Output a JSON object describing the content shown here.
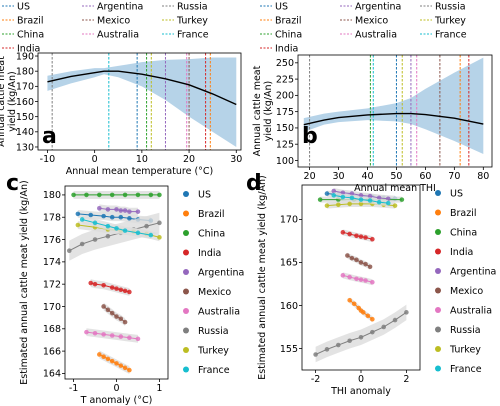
{
  "countries": [
    {
      "name": "US",
      "color": "#1f77b4"
    },
    {
      "name": "Brazil",
      "color": "#ff7f0e"
    },
    {
      "name": "China",
      "color": "#2ca02c"
    },
    {
      "name": "India",
      "color": "#d62728"
    },
    {
      "name": "Argentina",
      "color": "#9467bd"
    },
    {
      "name": "Mexico",
      "color": "#8c564b"
    },
    {
      "name": "Australia",
      "color": "#e377c2"
    },
    {
      "name": "Russia",
      "color": "#7f7f7f"
    },
    {
      "name": "Turkey",
      "color": "#bcbd22"
    },
    {
      "name": "France",
      "color": "#17becf"
    }
  ],
  "legend_top_order": [
    "US",
    "Argentina",
    "Russia",
    "Brazil",
    "Mexico",
    "Turkey",
    "China",
    "Australia",
    "France",
    "India"
  ],
  "colors": {
    "fit_line": "#000000",
    "band": "#a9cbe4",
    "band_gray": "#dcdcdc"
  },
  "chart_data": [
    {
      "panel": "a",
      "type": "line",
      "xlabel": "Annual mean temperature (°C)",
      "ylabel": "Annual cattle meat yield (kg/An)",
      "xlim": [
        -12,
        31
      ],
      "ylim": [
        128,
        192
      ],
      "xticks": [
        -10,
        0,
        10,
        20,
        30
      ],
      "yticks": [
        130,
        140,
        150,
        160,
        170,
        180,
        190
      ],
      "fit": [
        [
          -10,
          173
        ],
        [
          -5,
          176.5
        ],
        [
          0,
          179
        ],
        [
          2,
          180
        ],
        [
          5,
          180
        ],
        [
          10,
          178
        ],
        [
          15,
          175
        ],
        [
          20,
          171
        ],
        [
          25,
          165
        ],
        [
          30,
          158
        ]
      ],
      "band": [
        [
          -10,
          167,
          177
        ],
        [
          -5,
          172,
          180
        ],
        [
          0,
          176,
          182
        ],
        [
          2,
          178,
          182
        ],
        [
          5,
          176,
          183.5
        ],
        [
          10,
          170,
          186
        ],
        [
          15,
          161,
          187.5
        ],
        [
          20,
          150,
          188
        ],
        [
          25,
          140,
          189
        ],
        [
          30,
          130,
          189
        ]
      ],
      "country_x": {
        "US": 9,
        "Brazil": 24.5,
        "China": 11,
        "India": 23.5,
        "Argentina": 15,
        "Mexico": 20,
        "Australia": 19.5,
        "Russia": -9,
        "Turkey": 12,
        "France": 3
      }
    },
    {
      "panel": "b",
      "type": "line",
      "xlabel": "Annual mean THI",
      "ylabel": "Annual cattle meat yield (kg/An)",
      "xlim": [
        16,
        83
      ],
      "ylim": [
        90,
        262
      ],
      "xticks": [
        20,
        30,
        40,
        50,
        60,
        70,
        80
      ],
      "yticks": [
        100,
        125,
        150,
        175,
        200,
        225,
        250
      ],
      "fit": [
        [
          18,
          155
        ],
        [
          25,
          162
        ],
        [
          30,
          166
        ],
        [
          40,
          170
        ],
        [
          50,
          172
        ],
        [
          55,
          172
        ],
        [
          60,
          170.5
        ],
        [
          70,
          165
        ],
        [
          80,
          156
        ]
      ],
      "band": [
        [
          18,
          144,
          165
        ],
        [
          25,
          155,
          172
        ],
        [
          30,
          159,
          175
        ],
        [
          40,
          162,
          180
        ],
        [
          50,
          160,
          188
        ],
        [
          55,
          156,
          196
        ],
        [
          60,
          148,
          210
        ],
        [
          70,
          130,
          235
        ],
        [
          80,
          110,
          258
        ]
      ],
      "country_x": {
        "US": 50,
        "Brazil": 72,
        "China": 41,
        "India": 75,
        "Argentina": 55,
        "Mexico": 65,
        "Australia": 57,
        "Russia": 20,
        "Turkey": 52,
        "France": 42
      }
    },
    {
      "panel": "c",
      "type": "scatter",
      "xlabel": "T anomaly (°C)",
      "ylabel": "Estimated annual cattle meat yield (kg/An)",
      "xlim": [
        -1.2,
        1.2
      ],
      "ylim": [
        163.5,
        180.8
      ],
      "xticks": [
        -1,
        0,
        1
      ],
      "yticks": [
        164,
        166,
        168,
        170,
        172,
        174,
        176,
        178,
        180
      ],
      "series": [
        {
          "name": "US",
          "x": [
            -0.9,
            -0.6,
            -0.3,
            -0.1,
            0.1,
            0.3,
            0.5,
            0.8
          ],
          "y": [
            178.3,
            178.2,
            178.1,
            178.0,
            178.0,
            177.9,
            177.8,
            177.7
          ]
        },
        {
          "name": "Brazil",
          "x": [
            -0.4,
            -0.3,
            -0.2,
            -0.1,
            0.0,
            0.1,
            0.2,
            0.3
          ],
          "y": [
            165.7,
            165.5,
            165.3,
            165.1,
            164.9,
            164.7,
            164.5,
            164.3
          ]
        },
        {
          "name": "China",
          "x": [
            -1.0,
            -0.7,
            -0.4,
            -0.1,
            0.2,
            0.5,
            0.8,
            1.0
          ],
          "y": [
            180.0,
            180.0,
            180.0,
            180.0,
            180.0,
            180.0,
            180.0,
            180.0
          ]
        },
        {
          "name": "India",
          "x": [
            -0.6,
            -0.5,
            -0.3,
            -0.1,
            0.0,
            0.1,
            0.2,
            0.3
          ],
          "y": [
            172.1,
            172.0,
            171.9,
            171.7,
            171.6,
            171.5,
            171.4,
            171.3
          ]
        },
        {
          "name": "Argentina",
          "x": [
            -0.4,
            -0.2,
            0.0,
            0.1,
            0.2,
            0.3,
            0.5
          ],
          "y": [
            178.8,
            178.7,
            178.7,
            178.6,
            178.6,
            178.5,
            178.5
          ]
        },
        {
          "name": "Mexico",
          "x": [
            -0.3,
            -0.2,
            -0.1,
            0.0,
            0.1,
            0.2
          ],
          "y": [
            170.0,
            169.7,
            169.4,
            169.1,
            168.9,
            168.6
          ]
        },
        {
          "name": "Australia",
          "x": [
            -0.7,
            -0.5,
            -0.3,
            -0.1,
            0.1,
            0.3,
            0.5
          ],
          "y": [
            167.7,
            167.6,
            167.5,
            167.4,
            167.3,
            167.2,
            167.1
          ]
        },
        {
          "name": "Russia",
          "x": [
            -1.1,
            -0.8,
            -0.5,
            -0.2,
            0.1,
            0.4,
            0.7,
            1.0
          ],
          "y": [
            175.0,
            175.6,
            176.0,
            176.3,
            176.6,
            176.9,
            177.2,
            177.5
          ]
        },
        {
          "name": "Turkey",
          "x": [
            -0.9,
            -0.5,
            -0.2,
            0.1,
            0.4,
            0.7,
            1.0
          ],
          "y": [
            177.3,
            177.1,
            176.9,
            176.8,
            176.7,
            176.5,
            176.2
          ]
        },
        {
          "name": "France",
          "x": [
            -0.8,
            -0.5,
            -0.2,
            0.0,
            0.2,
            0.5,
            0.8
          ],
          "y": [
            177.8,
            177.5,
            177.2,
            177.0,
            176.8,
            176.6,
            176.4
          ]
        }
      ]
    },
    {
      "panel": "d",
      "type": "scatter",
      "xlabel": "THI anomaly",
      "ylabel": "Estimated annual cattle meat yield (kg/An)",
      "xlim": [
        -2.6,
        2.6
      ],
      "ylim": [
        152.5,
        174.0
      ],
      "xticks": [
        -2,
        0,
        2
      ],
      "yticks": [
        155,
        160,
        165,
        170
      ],
      "series": [
        {
          "name": "US",
          "x": [
            -1.5,
            -1.0,
            -0.5,
            0.0,
            0.5,
            1.0,
            1.5
          ],
          "y": [
            173.0,
            172.9,
            172.8,
            172.7,
            172.6,
            172.5,
            172.4
          ]
        },
        {
          "name": "Brazil",
          "x": [
            -0.5,
            -0.3,
            -0.1,
            0.0,
            0.1,
            0.3,
            0.5
          ],
          "y": [
            160.6,
            160.2,
            159.7,
            159.4,
            159.2,
            158.8,
            158.4
          ]
        },
        {
          "name": "China",
          "x": [
            -1.8,
            -1.0,
            -0.3,
            0.3,
            1.0,
            1.8
          ],
          "y": [
            172.3,
            172.3,
            172.3,
            172.3,
            172.3,
            172.3
          ]
        },
        {
          "name": "India",
          "x": [
            -0.8,
            -0.5,
            -0.2,
            0.0,
            0.2,
            0.5
          ],
          "y": [
            168.5,
            168.3,
            168.1,
            168.0,
            167.9,
            167.7
          ]
        },
        {
          "name": "Argentina",
          "x": [
            -1.2,
            -0.8,
            -0.4,
            0.0,
            0.4,
            0.8,
            1.2
          ],
          "y": [
            173.3,
            173.1,
            173.0,
            172.8,
            172.7,
            172.5,
            172.4
          ]
        },
        {
          "name": "Mexico",
          "x": [
            -0.6,
            -0.4,
            -0.2,
            0.0,
            0.2,
            0.4
          ],
          "y": [
            165.8,
            165.5,
            165.3,
            165.0,
            164.8,
            164.5
          ]
        },
        {
          "name": "Australia",
          "x": [
            -0.8,
            -0.5,
            -0.2,
            0.0,
            0.2,
            0.5
          ],
          "y": [
            163.5,
            163.3,
            163.1,
            163.0,
            162.9,
            162.7
          ]
        },
        {
          "name": "Russia",
          "x": [
            -2.0,
            -1.5,
            -1.0,
            -0.5,
            0.0,
            0.5,
            1.0,
            1.5,
            2.0
          ],
          "y": [
            154.3,
            154.9,
            155.4,
            155.9,
            156.3,
            156.9,
            157.5,
            158.3,
            159.2
          ]
        },
        {
          "name": "Turkey",
          "x": [
            -1.5,
            -1.0,
            -0.5,
            0.0,
            0.5,
            1.0,
            1.5
          ],
          "y": [
            171.6,
            171.7,
            171.8,
            171.8,
            171.8,
            171.7,
            171.6
          ]
        },
        {
          "name": "France",
          "x": [
            -1.2,
            -0.8,
            -0.4,
            0.0,
            0.4,
            0.8,
            1.2
          ],
          "y": [
            172.8,
            172.6,
            172.5,
            172.3,
            172.2,
            172.0,
            171.9
          ]
        }
      ]
    }
  ]
}
